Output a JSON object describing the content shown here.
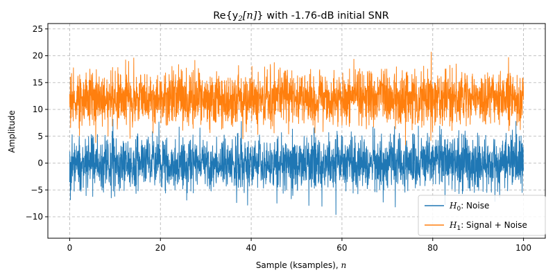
{
  "chart_data": {
    "type": "line",
    "title": "Re{y₂[n]} with -1.76-dB initial SNR",
    "title_parts": {
      "prefix": "Re{y",
      "sub": "2",
      "var": "[n]",
      "suffix": "} with -1.76-dB initial SNR"
    },
    "xlabel": "Sample (ksamples), n",
    "xlabel_parts": {
      "text": "Sample (ksamples), ",
      "var": "n"
    },
    "ylabel": "Amplitude",
    "xlim": [
      -4.8,
      104.8
    ],
    "ylim": [
      -14,
      26
    ],
    "xticks": [
      0,
      20,
      40,
      60,
      80,
      100
    ],
    "xtick_labels": [
      "0",
      "20",
      "40",
      "60",
      "80",
      "100"
    ],
    "yticks": [
      -10,
      -5,
      0,
      5,
      10,
      15,
      20,
      25
    ],
    "ytick_labels": [
      "−10",
      "−5",
      "0",
      "5",
      "10",
      "15",
      "20",
      "25"
    ],
    "grid": true,
    "legend_position": "lower-right",
    "sample_count_k": 100,
    "series": [
      {
        "name": "H₀: Noise",
        "legend_parts": {
          "H": "H",
          "sub": "0",
          "rest": ": Noise"
        },
        "color": "#1f77b4",
        "mean": 0,
        "std": 2.5,
        "approx_min": -12.2,
        "approx_max": 10.8
      },
      {
        "name": "H₁: Signal + Noise",
        "legend_parts": {
          "H": "H",
          "sub": "1",
          "rest": ": Signal + Noise"
        },
        "color": "#ff7f0e",
        "mean": 12,
        "std": 2.5,
        "approx_min": 1.5,
        "approx_max": 22.9
      }
    ]
  }
}
